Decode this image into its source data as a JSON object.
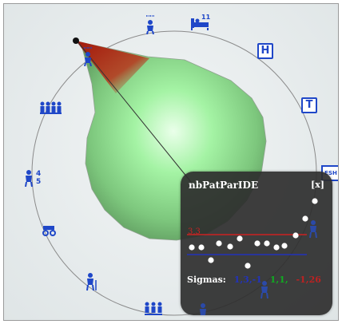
{
  "window": {
    "background": "#e6ebec"
  },
  "radar": {
    "center": "#ffffff",
    "fill_inner": "#a7f2a7",
    "fill_outer": "#6aa86a",
    "spike_color": "#b01a0a",
    "outline": "#8b8b8b"
  },
  "icons": {
    "top1": "Ὣ9",
    "calendar_number": "11",
    "hospital_letter": "H",
    "tower_letter": "T",
    "partial_letter": "ESH",
    "family_numbers": "45",
    "top_marks": "\"\"\""
  },
  "panel": {
    "title": "nbPatParIDE",
    "close_label": "[x]",
    "upper_value": "3,3",
    "sigmas_label": "Sigmas:",
    "sigma_1": "1,3,-1",
    "sigma_2": "1,1,",
    "sigma_3": "-1,26",
    "colors": {
      "upper": "#cc2222",
      "lower": "#2233bb",
      "points": "#ffffff"
    }
  }
}
